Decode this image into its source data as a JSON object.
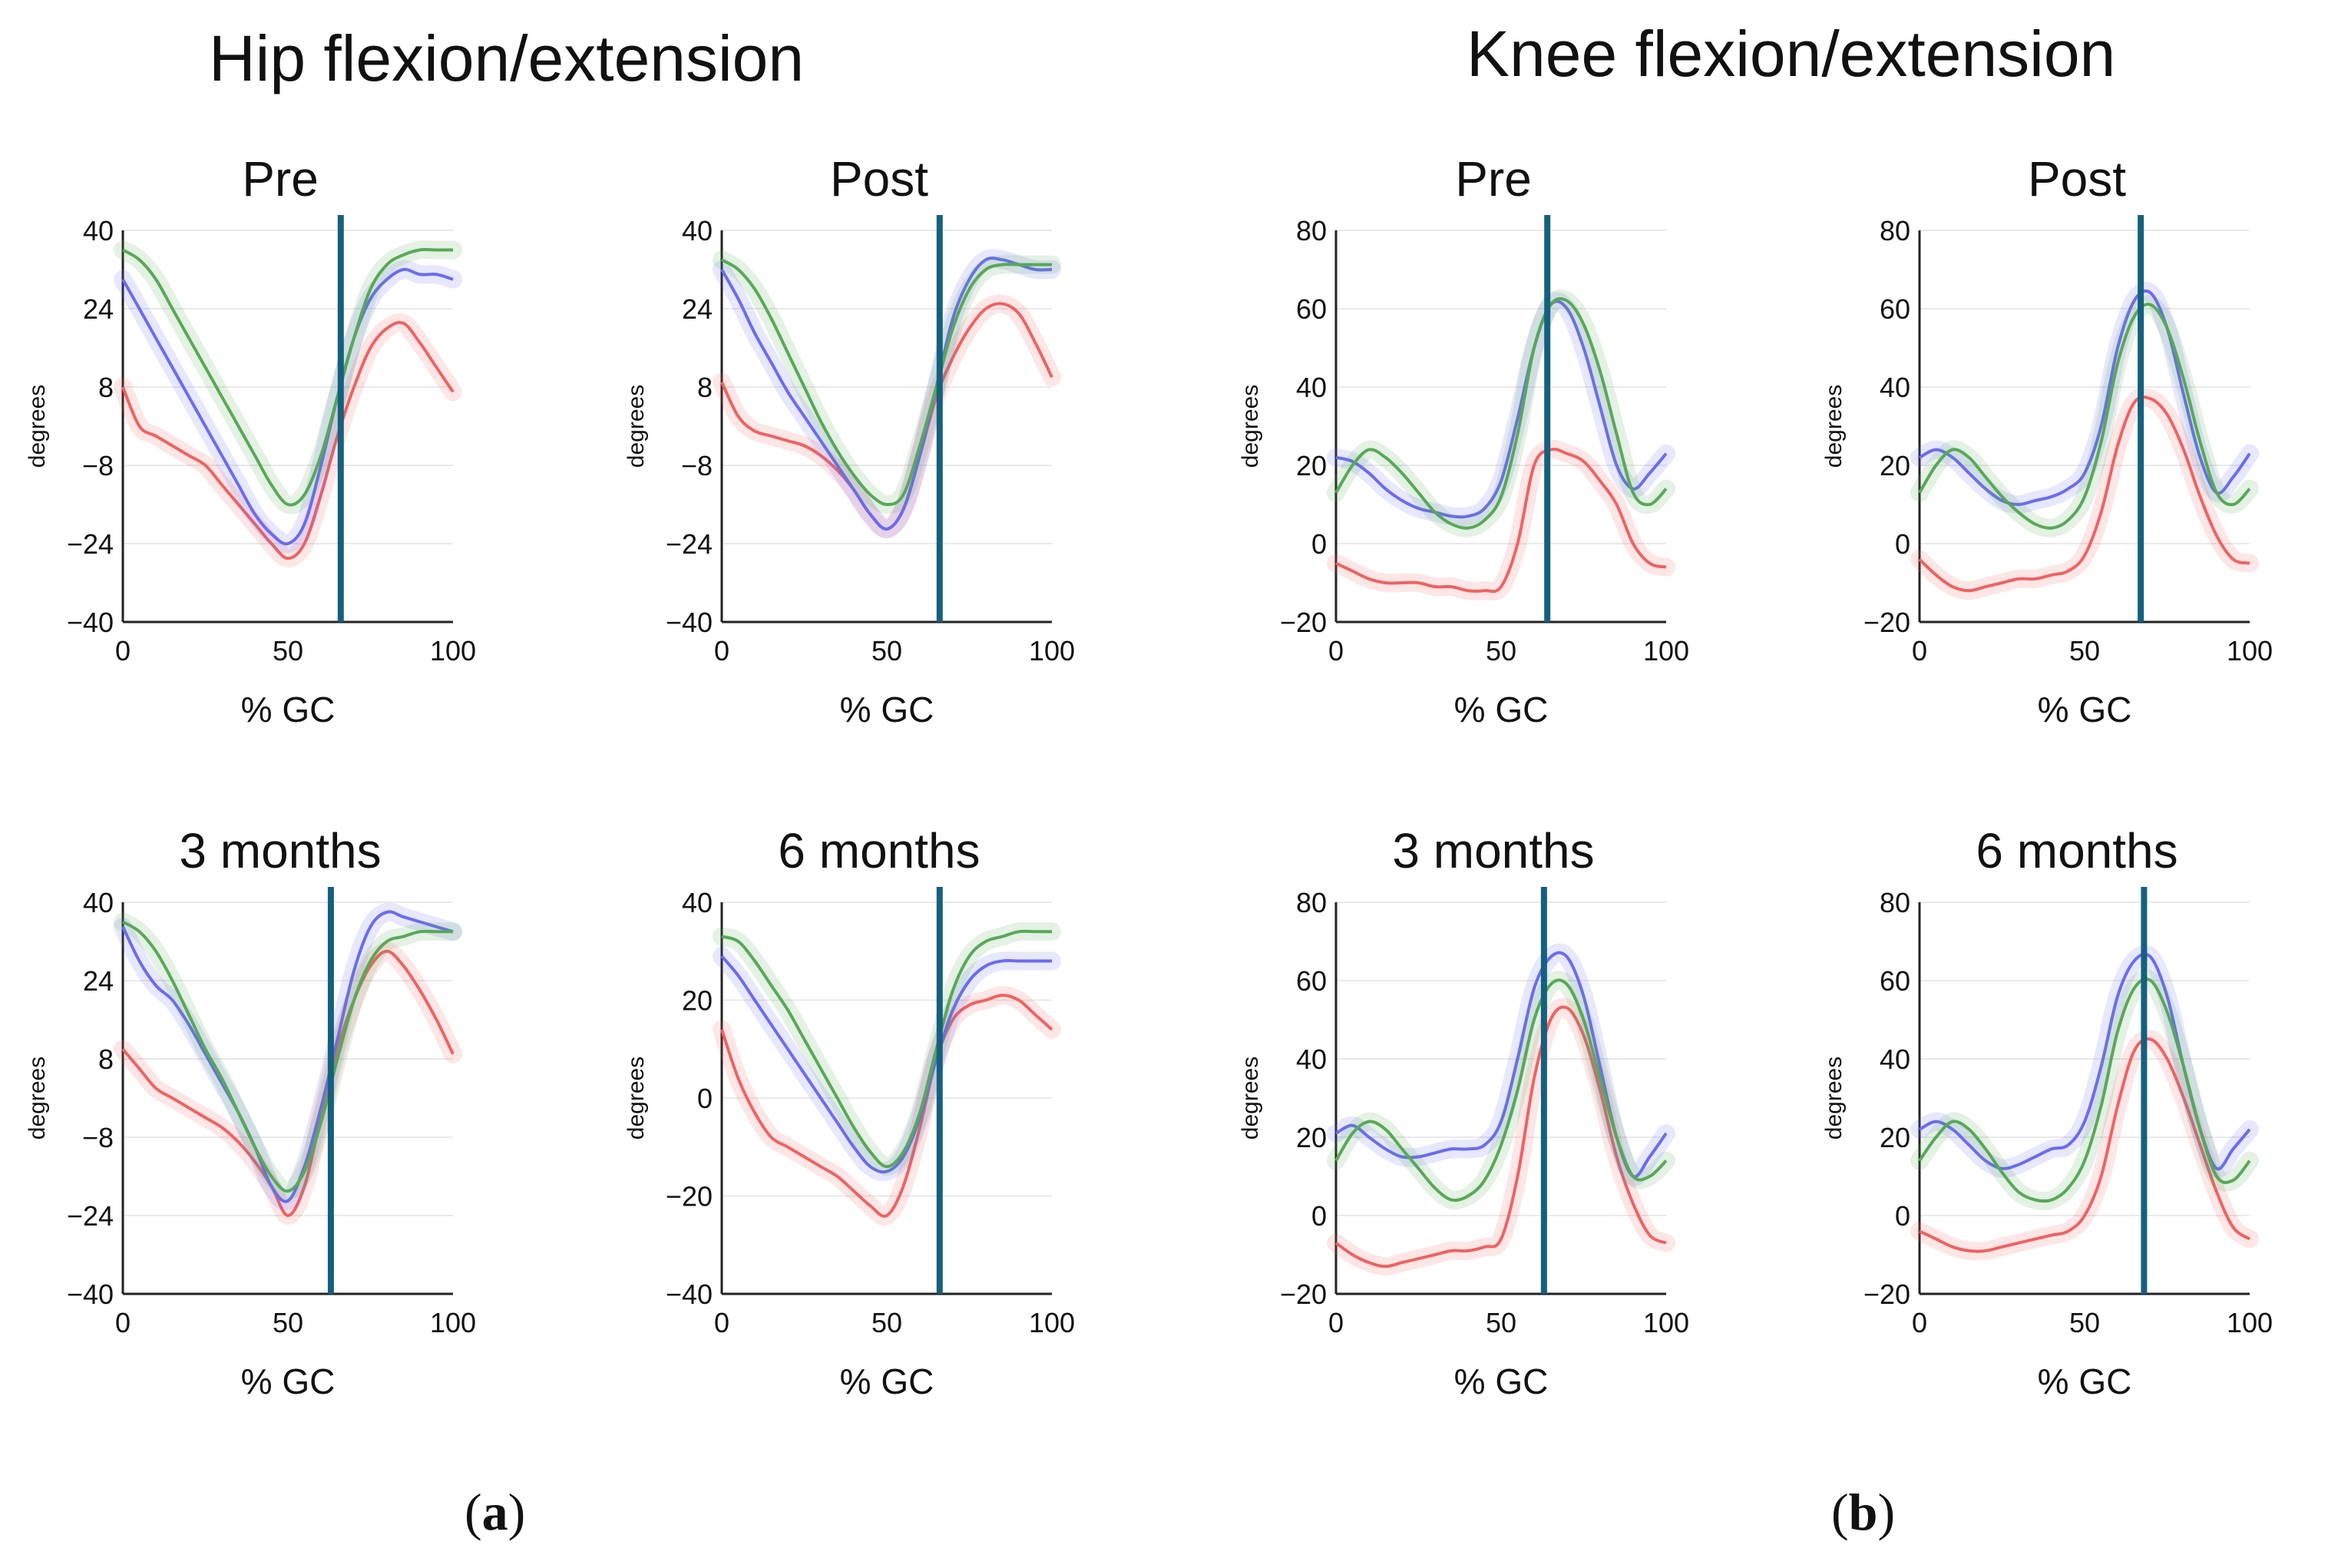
{
  "figure": {
    "group_titles": [
      "Hip flexion/extension",
      "Knee flexion/extension"
    ],
    "panel_labels": [
      "a",
      "b"
    ],
    "colors": {
      "red": "#f06262",
      "blue": "#6b6bf2",
      "green": "#57a957",
      "toe_off_line": "#15607f",
      "gridline": "#e9e9e9",
      "axis": "#222222",
      "text": "#111111"
    }
  },
  "chart_data": [
    {
      "id": "hip-pre",
      "type": "line",
      "title": "Pre",
      "xlabel": "% GC",
      "ylabel": "degrees",
      "xlim": [
        0,
        100
      ],
      "ylim": [
        -40,
        40
      ],
      "xticks": [
        "0",
        "50",
        "100"
      ],
      "yticks": [
        "−40",
        "−24",
        "−8",
        "8",
        "24",
        "40"
      ],
      "toe_off_percent": 66,
      "x": [
        0,
        5,
        10,
        15,
        20,
        25,
        30,
        35,
        40,
        45,
        50,
        55,
        60,
        65,
        70,
        75,
        80,
        85,
        90,
        95,
        100
      ],
      "series": [
        {
          "name": "red",
          "color": "red",
          "values": [
            8,
            0,
            -2,
            -4,
            -6,
            -8,
            -12,
            -16,
            -20,
            -24,
            -27,
            -24,
            -14,
            -2,
            8,
            16,
            20,
            21,
            17,
            12,
            7
          ]
        },
        {
          "name": "blue",
          "color": "blue",
          "values": [
            30,
            24,
            18,
            12,
            6,
            0,
            -6,
            -12,
            -18,
            -22,
            -24,
            -20,
            -8,
            6,
            18,
            26,
            30,
            32,
            31,
            31,
            30
          ]
        },
        {
          "name": "green",
          "color": "green",
          "values": [
            36,
            34,
            30,
            24,
            18,
            12,
            6,
            0,
            -6,
            -12,
            -16,
            -14,
            -6,
            6,
            18,
            28,
            33,
            35,
            36,
            36,
            36
          ]
        }
      ]
    },
    {
      "id": "hip-post",
      "type": "line",
      "title": "Post",
      "xlabel": "% GC",
      "ylabel": "degrees",
      "xlim": [
        0,
        100
      ],
      "ylim": [
        -40,
        40
      ],
      "xticks": [
        "0",
        "50",
        "100"
      ],
      "yticks": [
        "−40",
        "−24",
        "−8",
        "8",
        "24",
        "40"
      ],
      "toe_off_percent": 66,
      "x": [
        0,
        5,
        10,
        15,
        20,
        25,
        30,
        35,
        40,
        45,
        50,
        55,
        60,
        65,
        70,
        75,
        80,
        85,
        90,
        95,
        100
      ],
      "series": [
        {
          "name": "red",
          "color": "red",
          "values": [
            9,
            2,
            -1,
            -2,
            -3,
            -4,
            -6,
            -9,
            -13,
            -18,
            -21,
            -17,
            -6,
            6,
            14,
            20,
            24,
            25,
            23,
            17,
            10
          ]
        },
        {
          "name": "blue",
          "color": "blue",
          "values": [
            32,
            26,
            19,
            13,
            7,
            2,
            -3,
            -8,
            -13,
            -18,
            -21,
            -17,
            -6,
            8,
            22,
            30,
            34,
            34,
            33,
            32,
            32
          ]
        },
        {
          "name": "green",
          "color": "green",
          "values": [
            34,
            32,
            28,
            22,
            15,
            8,
            1,
            -5,
            -10,
            -14,
            -16,
            -14,
            -4,
            8,
            20,
            28,
            32,
            33,
            33,
            33,
            33
          ]
        }
      ]
    },
    {
      "id": "knee-pre",
      "type": "line",
      "title": "Pre",
      "xlabel": "% GC",
      "ylabel": "degrees",
      "xlim": [
        0,
        100
      ],
      "ylim": [
        -20,
        80
      ],
      "xticks": [
        "0",
        "50",
        "100"
      ],
      "yticks": [
        "−20",
        "0",
        "20",
        "40",
        "60",
        "80"
      ],
      "toe_off_percent": 64,
      "x": [
        0,
        5,
        10,
        15,
        20,
        25,
        30,
        35,
        40,
        45,
        50,
        55,
        60,
        65,
        70,
        75,
        80,
        85,
        90,
        95,
        100
      ],
      "series": [
        {
          "name": "red",
          "color": "red",
          "values": [
            -5,
            -7,
            -9,
            -10,
            -10,
            -10,
            -11,
            -11,
            -12,
            -12,
            -11,
            0,
            20,
            24,
            23,
            21,
            16,
            10,
            0,
            -5,
            -6
          ]
        },
        {
          "name": "blue",
          "color": "blue",
          "values": [
            22,
            21,
            18,
            14,
            11,
            9,
            8,
            7,
            7,
            9,
            16,
            32,
            50,
            61,
            60,
            50,
            35,
            20,
            14,
            18,
            23
          ]
        },
        {
          "name": "green",
          "color": "green",
          "values": [
            13,
            20,
            24,
            22,
            18,
            13,
            8,
            5,
            4,
            6,
            12,
            28,
            50,
            61,
            62,
            56,
            44,
            28,
            13,
            10,
            14
          ]
        }
      ]
    },
    {
      "id": "knee-post",
      "type": "line",
      "title": "Post",
      "xlabel": "% GC",
      "ylabel": "degrees",
      "xlim": [
        0,
        100
      ],
      "ylim": [
        -20,
        80
      ],
      "xticks": [
        "0",
        "50",
        "100"
      ],
      "yticks": [
        "−20",
        "0",
        "20",
        "40",
        "60",
        "80"
      ],
      "toe_off_percent": 67,
      "x": [
        0,
        5,
        10,
        15,
        20,
        25,
        30,
        35,
        40,
        45,
        50,
        55,
        60,
        65,
        70,
        75,
        80,
        85,
        90,
        95,
        100
      ],
      "series": [
        {
          "name": "red",
          "color": "red",
          "values": [
            -4,
            -8,
            -11,
            -12,
            -11,
            -10,
            -9,
            -9,
            -8,
            -7,
            -3,
            8,
            25,
            36,
            37,
            33,
            24,
            12,
            2,
            -4,
            -5
          ]
        },
        {
          "name": "blue",
          "color": "blue",
          "values": [
            22,
            24,
            22,
            18,
            14,
            11,
            10,
            11,
            12,
            14,
            18,
            30,
            50,
            62,
            64,
            55,
            38,
            22,
            13,
            17,
            23
          ]
        },
        {
          "name": "green",
          "color": "green",
          "values": [
            13,
            20,
            24,
            22,
            17,
            12,
            8,
            5,
            4,
            6,
            12,
            26,
            46,
            58,
            61,
            55,
            42,
            26,
            13,
            10,
            14
          ]
        }
      ]
    },
    {
      "id": "hip-3m",
      "type": "line",
      "title": "3 months",
      "xlabel": "% GC",
      "ylabel": "degrees",
      "xlim": [
        0,
        100
      ],
      "ylim": [
        -40,
        40
      ],
      "xticks": [
        "0",
        "50",
        "100"
      ],
      "yticks": [
        "−40",
        "−24",
        "−8",
        "8",
        "24",
        "40"
      ],
      "toe_off_percent": 63,
      "x": [
        0,
        5,
        10,
        15,
        20,
        25,
        30,
        35,
        40,
        45,
        50,
        55,
        60,
        65,
        70,
        75,
        80,
        85,
        90,
        95,
        100
      ],
      "series": [
        {
          "name": "red",
          "color": "red",
          "values": [
            10,
            6,
            2,
            0,
            -2,
            -4,
            -6,
            -9,
            -13,
            -18,
            -24,
            -18,
            -4,
            10,
            20,
            27,
            30,
            27,
            22,
            16,
            9
          ]
        },
        {
          "name": "blue",
          "color": "blue",
          "values": [
            35,
            28,
            23,
            20,
            15,
            9,
            3,
            -3,
            -10,
            -18,
            -21,
            -14,
            -2,
            12,
            26,
            35,
            38,
            37,
            36,
            35,
            34
          ]
        },
        {
          "name": "green",
          "color": "green",
          "values": [
            36,
            34,
            30,
            24,
            17,
            10,
            4,
            -3,
            -10,
            -16,
            -19,
            -15,
            -5,
            8,
            20,
            28,
            32,
            33,
            34,
            34,
            34
          ]
        }
      ]
    },
    {
      "id": "hip-6m",
      "type": "line",
      "title": "6 months",
      "xlabel": "% GC",
      "ylabel": "degrees",
      "xlim": [
        0,
        100
      ],
      "ylim": [
        -40,
        40
      ],
      "xticks": [
        "0",
        "50",
        "100"
      ],
      "yticks": [
        "−40",
        "−20",
        "0",
        "20",
        "40"
      ],
      "toe_off_percent": 66,
      "x": [
        0,
        5,
        10,
        15,
        20,
        25,
        30,
        35,
        40,
        45,
        50,
        55,
        60,
        65,
        70,
        75,
        80,
        85,
        90,
        95,
        100
      ],
      "series": [
        {
          "name": "red",
          "color": "red",
          "values": [
            14,
            4,
            -3,
            -8,
            -10,
            -12,
            -14,
            -16,
            -19,
            -22,
            -24,
            -18,
            -6,
            8,
            16,
            19,
            20,
            21,
            20,
            17,
            14
          ]
        },
        {
          "name": "blue",
          "color": "blue",
          "values": [
            29,
            25,
            20,
            15,
            10,
            5,
            0,
            -5,
            -10,
            -14,
            -15,
            -12,
            -4,
            8,
            18,
            24,
            27,
            28,
            28,
            28,
            28
          ]
        },
        {
          "name": "green",
          "color": "green",
          "values": [
            33,
            32,
            28,
            23,
            18,
            12,
            6,
            0,
            -6,
            -11,
            -14,
            -11,
            -3,
            10,
            22,
            29,
            32,
            33,
            34,
            34,
            34
          ]
        }
      ]
    },
    {
      "id": "knee-3m",
      "type": "line",
      "title": "3 months",
      "xlabel": "% GC",
      "ylabel": "degrees",
      "xlim": [
        0,
        100
      ],
      "ylim": [
        -20,
        80
      ],
      "xticks": [
        "0",
        "50",
        "100"
      ],
      "yticks": [
        "−20",
        "0",
        "20",
        "40",
        "60",
        "80"
      ],
      "toe_off_percent": 63,
      "x": [
        0,
        5,
        10,
        15,
        20,
        25,
        30,
        35,
        40,
        45,
        50,
        55,
        60,
        65,
        70,
        75,
        80,
        85,
        90,
        95,
        100
      ],
      "series": [
        {
          "name": "red",
          "color": "red",
          "values": [
            -7,
            -10,
            -12,
            -13,
            -12,
            -11,
            -10,
            -9,
            -9,
            -8,
            -6,
            10,
            35,
            50,
            53,
            46,
            32,
            15,
            3,
            -5,
            -7
          ]
        },
        {
          "name": "blue",
          "color": "blue",
          "values": [
            21,
            23,
            20,
            17,
            15,
            15,
            16,
            17,
            17,
            18,
            24,
            40,
            58,
            66,
            66,
            56,
            38,
            20,
            10,
            15,
            21
          ]
        },
        {
          "name": "green",
          "color": "green",
          "values": [
            14,
            21,
            24,
            22,
            17,
            12,
            7,
            4,
            5,
            9,
            18,
            32,
            50,
            59,
            59,
            50,
            35,
            20,
            10,
            10,
            14
          ]
        }
      ]
    },
    {
      "id": "knee-6m",
      "type": "line",
      "title": "6 months",
      "xlabel": "% GC",
      "ylabel": "degrees",
      "xlim": [
        0,
        100
      ],
      "ylim": [
        -20,
        80
      ],
      "xticks": [
        "0",
        "50",
        "100"
      ],
      "yticks": [
        "−20",
        "0",
        "20",
        "40",
        "60",
        "80"
      ],
      "toe_off_percent": 68,
      "x": [
        0,
        5,
        10,
        15,
        20,
        25,
        30,
        35,
        40,
        45,
        50,
        55,
        60,
        65,
        70,
        75,
        80,
        85,
        90,
        95,
        100
      ],
      "series": [
        {
          "name": "red",
          "color": "red",
          "values": [
            -4,
            -6,
            -8,
            -9,
            -9,
            -8,
            -7,
            -6,
            -5,
            -4,
            0,
            10,
            28,
            42,
            45,
            40,
            30,
            18,
            6,
            -3,
            -6
          ]
        },
        {
          "name": "blue",
          "color": "blue",
          "values": [
            22,
            24,
            22,
            18,
            14,
            12,
            13,
            15,
            17,
            18,
            24,
            38,
            56,
            65,
            66,
            56,
            38,
            22,
            12,
            17,
            22
          ]
        },
        {
          "name": "green",
          "color": "green",
          "values": [
            14,
            20,
            24,
            22,
            17,
            11,
            6,
            4,
            4,
            7,
            14,
            28,
            47,
            58,
            60,
            52,
            38,
            22,
            10,
            9,
            14
          ]
        }
      ]
    }
  ]
}
